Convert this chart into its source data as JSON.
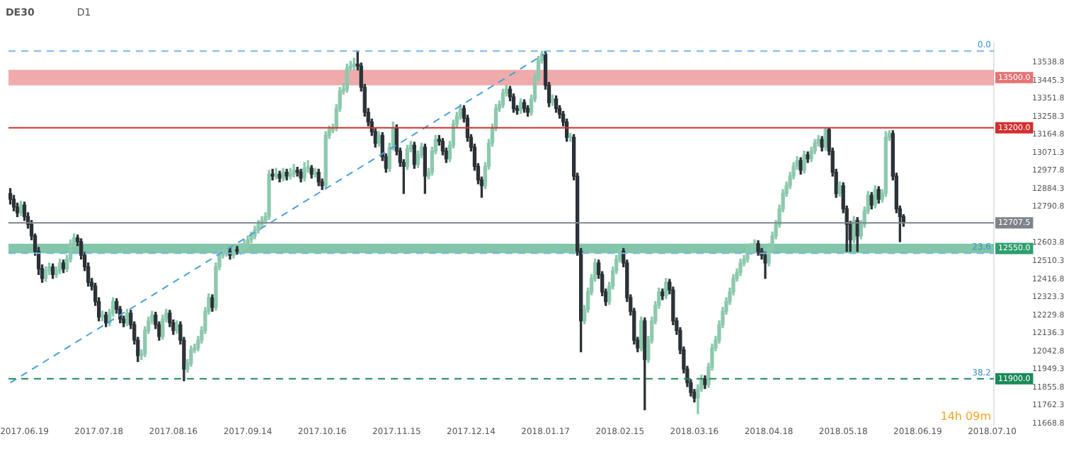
{
  "chart_data": {
    "type": "candlestick",
    "title": "DE30",
    "subtitle": "D1",
    "categories": [
      null,
      null,
      null,
      null,
      "2017.06.19",
      null,
      null,
      null,
      null,
      null,
      null,
      null,
      null,
      null,
      null,
      null,
      null,
      null,
      null,
      null,
      null,
      null,
      null,
      null,
      null,
      "2017.07.18",
      null,
      null,
      null,
      null,
      null,
      null,
      null,
      null,
      null,
      null,
      null,
      null,
      null,
      null,
      null,
      null,
      null,
      null,
      null,
      null,
      "2017.08.16",
      null,
      null,
      null,
      null,
      null,
      null,
      null,
      null,
      null,
      null,
      null,
      null,
      null,
      null,
      null,
      null,
      null,
      null,
      null,
      null,
      "2017.09.14",
      null,
      null,
      null,
      null,
      null,
      null,
      null,
      null,
      null,
      null,
      null,
      null,
      null,
      null,
      null,
      null,
      null,
      null,
      null,
      null,
      "2017.10.16",
      null,
      null,
      null,
      null,
      null,
      null,
      null,
      null,
      null,
      null,
      null,
      null,
      null,
      null,
      null,
      null,
      null,
      null,
      null,
      null,
      "2017.11.15",
      null,
      null,
      null,
      null,
      null,
      null,
      null,
      null,
      null,
      null,
      null,
      null,
      null,
      null,
      null,
      null,
      null,
      null,
      null,
      null,
      "2017.12.14",
      null,
      null,
      null,
      null,
      null,
      null,
      null,
      null,
      null,
      null,
      null,
      null,
      null,
      null,
      null,
      null,
      null,
      null,
      null,
      null,
      "2018.01.17",
      null,
      null,
      null,
      null,
      null,
      null,
      null,
      null,
      null,
      null,
      null,
      null,
      null,
      null,
      null,
      null,
      null,
      null,
      null,
      null,
      "2018.02.15",
      null,
      null,
      null,
      null,
      null,
      null,
      null,
      null,
      null,
      null,
      null,
      null,
      null,
      null,
      null,
      null,
      null,
      null,
      null,
      null,
      "2018.03.16",
      null,
      null,
      null,
      null,
      null,
      null,
      null,
      null,
      null,
      null,
      null,
      null,
      null,
      null,
      null,
      null,
      null,
      null,
      null,
      null,
      "2018.04.18",
      null,
      null,
      null,
      null,
      null,
      null,
      null,
      null,
      null,
      null,
      null,
      null,
      null,
      null,
      null,
      null,
      null,
      null,
      null,
      null,
      "2018.05.18",
      null,
      null,
      null,
      null,
      null,
      null,
      null,
      null,
      null,
      null,
      null,
      null,
      null,
      null,
      null,
      null,
      null,
      null,
      null,
      null,
      "2018.06.19",
      null,
      null,
      null,
      null,
      null,
      null,
      null,
      null,
      null,
      null,
      null,
      null,
      null,
      null,
      null,
      null,
      null,
      null,
      null,
      null,
      "2018.07.10"
    ],
    "ohlc": [
      [
        12860,
        12885,
        12805,
        12830
      ],
      [
        12830,
        12850,
        12770,
        12790
      ],
      [
        12790,
        12810,
        12740,
        12760
      ],
      [
        12760,
        12820,
        12745,
        12800
      ],
      [
        12800,
        12815,
        12720,
        12740
      ],
      [
        12740,
        12760,
        12680,
        12700
      ],
      [
        12700,
        12720,
        12620,
        12640
      ],
      [
        12640,
        12650,
        12540,
        12560
      ],
      [
        12560,
        12580,
        12440,
        12470
      ],
      [
        12470,
        12490,
        12400,
        12420
      ],
      [
        12420,
        12480,
        12405,
        12460
      ],
      [
        12460,
        12500,
        12440,
        12480
      ],
      [
        12480,
        12495,
        12420,
        12440
      ],
      [
        12440,
        12480,
        12425,
        12460
      ],
      [
        12460,
        12520,
        12445,
        12500
      ],
      [
        12500,
        12515,
        12450,
        12470
      ],
      [
        12470,
        12540,
        12455,
        12520
      ],
      [
        12520,
        12620,
        12505,
        12600
      ],
      [
        12600,
        12650,
        12580,
        12630
      ],
      [
        12630,
        12645,
        12590,
        12610
      ],
      [
        12610,
        12625,
        12520,
        12540
      ],
      [
        12540,
        12555,
        12460,
        12480
      ],
      [
        12480,
        12500,
        12380,
        12400
      ],
      [
        12400,
        12420,
        12360,
        12380
      ],
      [
        12380,
        12395,
        12280,
        12300
      ],
      [
        12300,
        12320,
        12200,
        12220
      ],
      [
        12220,
        12250,
        12200,
        12230
      ],
      [
        12230,
        12245,
        12170,
        12190
      ],
      [
        12190,
        12260,
        12175,
        12240
      ],
      [
        12240,
        12320,
        12225,
        12300
      ],
      [
        12300,
        12315,
        12240,
        12260
      ],
      [
        12260,
        12275,
        12190,
        12210
      ],
      [
        12210,
        12225,
        12170,
        12190
      ],
      [
        12190,
        12260,
        12175,
        12240
      ],
      [
        12240,
        12255,
        12160,
        12180
      ],
      [
        12180,
        12195,
        12080,
        12100
      ],
      [
        12100,
        12115,
        11990,
        12020
      ],
      [
        12020,
        12050,
        12000,
        12030
      ],
      [
        12030,
        12170,
        12015,
        12150
      ],
      [
        12150,
        12220,
        12135,
        12200
      ],
      [
        12200,
        12250,
        12185,
        12230
      ],
      [
        12230,
        12245,
        12160,
        12180
      ],
      [
        12180,
        12195,
        12100,
        12120
      ],
      [
        12120,
        12230,
        12105,
        12210
      ],
      [
        12210,
        12260,
        12195,
        12240
      ],
      [
        12240,
        12255,
        12170,
        12190
      ],
      [
        12190,
        12205,
        12130,
        12150
      ],
      [
        12150,
        12200,
        12135,
        12180
      ],
      [
        12180,
        12195,
        12080,
        12100
      ],
      [
        12100,
        12115,
        11890,
        11950
      ],
      [
        11950,
        12000,
        11935,
        11980
      ],
      [
        11980,
        12070,
        11965,
        12050
      ],
      [
        12050,
        12080,
        12035,
        12060
      ],
      [
        12060,
        12120,
        12045,
        12100
      ],
      [
        12100,
        12170,
        12085,
        12150
      ],
      [
        12150,
        12270,
        12135,
        12250
      ],
      [
        12250,
        12340,
        12235,
        12320
      ],
      [
        12320,
        12335,
        12250,
        12270
      ],
      [
        12270,
        12500,
        12255,
        12480
      ],
      [
        12480,
        12560,
        12465,
        12540
      ],
      [
        12540,
        12570,
        12525,
        12550
      ],
      [
        12550,
        12580,
        12535,
        12560
      ],
      [
        12560,
        12575,
        12520,
        12540
      ],
      [
        12540,
        12590,
        12525,
        12570
      ],
      [
        12570,
        12585,
        12545,
        12560
      ],
      [
        12560,
        12600,
        12545,
        12580
      ],
      [
        12580,
        12620,
        12565,
        12600
      ],
      [
        12600,
        12640,
        12585,
        12620
      ],
      [
        12620,
        12660,
        12605,
        12640
      ],
      [
        12640,
        12690,
        12625,
        12670
      ],
      [
        12670,
        12720,
        12655,
        12700
      ],
      [
        12700,
        12740,
        12685,
        12720
      ],
      [
        12720,
        12760,
        12705,
        12740
      ],
      [
        12740,
        12980,
        12725,
        12960
      ],
      [
        12960,
        12985,
        12930,
        12950
      ],
      [
        12950,
        12990,
        12935,
        12960
      ],
      [
        12960,
        12975,
        12920,
        12940
      ],
      [
        12940,
        12990,
        12925,
        12970
      ],
      [
        12970,
        12985,
        12930,
        12950
      ],
      [
        12950,
        12990,
        12935,
        12960
      ],
      [
        12960,
        13010,
        12945,
        12980
      ],
      [
        12980,
        12995,
        12950,
        12970
      ],
      [
        12970,
        12985,
        12920,
        12940
      ],
      [
        12940,
        13020,
        12925,
        12990
      ],
      [
        12990,
        13030,
        12970,
        12990
      ],
      [
        12990,
        13005,
        12940,
        12960
      ],
      [
        12960,
        12990,
        12945,
        12970
      ],
      [
        12970,
        12985,
        12900,
        12920
      ],
      [
        12920,
        12935,
        12880,
        12900
      ],
      [
        12900,
        13180,
        12885,
        13160
      ],
      [
        13160,
        13210,
        13145,
        13190
      ],
      [
        13190,
        13220,
        13175,
        13200
      ],
      [
        13200,
        13320,
        13185,
        13300
      ],
      [
        13300,
        13410,
        13285,
        13390
      ],
      [
        13390,
        13430,
        13375,
        13400
      ],
      [
        13400,
        13530,
        13385,
        13510
      ],
      [
        13510,
        13545,
        13495,
        13520
      ],
      [
        13520,
        13560,
        13500,
        13530
      ],
      [
        13530,
        13597,
        13500,
        13520
      ],
      [
        13520,
        13535,
        13390,
        13410
      ],
      [
        13410,
        13425,
        13260,
        13280
      ],
      [
        13280,
        13300,
        13210,
        13230
      ],
      [
        13230,
        13245,
        13160,
        13180
      ],
      [
        13180,
        13195,
        13100,
        13120
      ],
      [
        13120,
        13180,
        13105,
        13160
      ],
      [
        13160,
        13175,
        13030,
        13050
      ],
      [
        13050,
        13065,
        12970,
        12990
      ],
      [
        12990,
        13120,
        12975,
        13100
      ],
      [
        13100,
        13230,
        13085,
        13200
      ],
      [
        13200,
        13215,
        13060,
        13080
      ],
      [
        13080,
        13095,
        13000,
        13020
      ],
      [
        13020,
        13035,
        12860,
        13000
      ],
      [
        13000,
        13110,
        12985,
        13090
      ],
      [
        13090,
        13130,
        13075,
        13110
      ],
      [
        13110,
        13125,
        12990,
        13010
      ],
      [
        13010,
        13080,
        12995,
        13060
      ],
      [
        13060,
        13120,
        13045,
        13100
      ],
      [
        13100,
        13115,
        12860,
        12950
      ],
      [
        12950,
        12990,
        12935,
        12970
      ],
      [
        12970,
        13100,
        12955,
        13080
      ],
      [
        13080,
        13160,
        13065,
        13140
      ],
      [
        13140,
        13160,
        13110,
        13130
      ],
      [
        13130,
        13145,
        13060,
        13080
      ],
      [
        13080,
        13095,
        13020,
        13040
      ],
      [
        13040,
        13130,
        13025,
        13110
      ],
      [
        13110,
        13240,
        13095,
        13220
      ],
      [
        13220,
        13280,
        13205,
        13260
      ],
      [
        13260,
        13320,
        13245,
        13300
      ],
      [
        13300,
        13315,
        13230,
        13250
      ],
      [
        13250,
        13265,
        13130,
        13150
      ],
      [
        13150,
        13165,
        13080,
        13100
      ],
      [
        13100,
        13115,
        12980,
        13000
      ],
      [
        13000,
        13015,
        12910,
        12930
      ],
      [
        12930,
        12945,
        12840,
        12900
      ],
      [
        12900,
        13020,
        12885,
        13000
      ],
      [
        13000,
        13140,
        12985,
        13120
      ],
      [
        13120,
        13220,
        13105,
        13200
      ],
      [
        13200,
        13320,
        13185,
        13300
      ],
      [
        13300,
        13340,
        13285,
        13320
      ],
      [
        13320,
        13400,
        13305,
        13380
      ],
      [
        13380,
        13420,
        13365,
        13400
      ],
      [
        13400,
        13415,
        13340,
        13360
      ],
      [
        13360,
        13375,
        13280,
        13300
      ],
      [
        13300,
        13315,
        13270,
        13290
      ],
      [
        13290,
        13350,
        13275,
        13330
      ],
      [
        13330,
        13345,
        13280,
        13300
      ],
      [
        13300,
        13315,
        13260,
        13280
      ],
      [
        13280,
        13370,
        13265,
        13350
      ],
      [
        13350,
        13480,
        13335,
        13460
      ],
      [
        13460,
        13570,
        13445,
        13550
      ],
      [
        13550,
        13597,
        13535,
        13580
      ],
      [
        13580,
        13595,
        13400,
        13420
      ],
      [
        13420,
        13435,
        13310,
        13330
      ],
      [
        13330,
        13370,
        13315,
        13350
      ],
      [
        13350,
        13365,
        13280,
        13300
      ],
      [
        13300,
        13315,
        13250,
        13270
      ],
      [
        13270,
        13285,
        13210,
        13230
      ],
      [
        13230,
        13245,
        13130,
        13150
      ],
      [
        13150,
        13170,
        13130,
        13150
      ],
      [
        13150,
        13165,
        12930,
        12950
      ],
      [
        12950,
        12965,
        12540,
        12560
      ],
      [
        12560,
        12575,
        12040,
        12200
      ],
      [
        12200,
        12280,
        12185,
        12260
      ],
      [
        12260,
        12370,
        12245,
        12350
      ],
      [
        12350,
        12440,
        12335,
        12420
      ],
      [
        12420,
        12520,
        12405,
        12500
      ],
      [
        12500,
        12515,
        12420,
        12440
      ],
      [
        12440,
        12455,
        12330,
        12350
      ],
      [
        12350,
        12365,
        12280,
        12300
      ],
      [
        12300,
        12400,
        12285,
        12380
      ],
      [
        12380,
        12480,
        12365,
        12460
      ],
      [
        12460,
        12540,
        12445,
        12520
      ],
      [
        12520,
        12580,
        12505,
        12560
      ],
      [
        12560,
        12575,
        12480,
        12500
      ],
      [
        12500,
        12515,
        12300,
        12320
      ],
      [
        12320,
        12335,
        12230,
        12250
      ],
      [
        12250,
        12265,
        12080,
        12100
      ],
      [
        12100,
        12115,
        12040,
        12060
      ],
      [
        12060,
        12220,
        12045,
        12200
      ],
      [
        12200,
        12215,
        11740,
        12000
      ],
      [
        12000,
        12120,
        11985,
        12100
      ],
      [
        12100,
        12220,
        12085,
        12200
      ],
      [
        12200,
        12300,
        12185,
        12280
      ],
      [
        12280,
        12370,
        12265,
        12350
      ],
      [
        12350,
        12365,
        12310,
        12330
      ],
      [
        12330,
        12420,
        12315,
        12400
      ],
      [
        12400,
        12415,
        12340,
        12360
      ],
      [
        12360,
        12375,
        12180,
        12200
      ],
      [
        12200,
        12215,
        12130,
        12150
      ],
      [
        12150,
        12165,
        12030,
        12050
      ],
      [
        12050,
        12065,
        11930,
        11950
      ],
      [
        11950,
        11965,
        11860,
        11880
      ],
      [
        11880,
        11895,
        11810,
        11830
      ],
      [
        11830,
        11845,
        11780,
        11800
      ],
      [
        11800,
        11870,
        11720,
        11850
      ],
      [
        11850,
        11920,
        11835,
        11900
      ],
      [
        11900,
        11915,
        11850,
        11870
      ],
      [
        11870,
        11980,
        11855,
        11960
      ],
      [
        11960,
        12080,
        11945,
        12060
      ],
      [
        12060,
        12120,
        12045,
        12100
      ],
      [
        12100,
        12200,
        12085,
        12180
      ],
      [
        12180,
        12270,
        12165,
        12250
      ],
      [
        12250,
        12320,
        12235,
        12300
      ],
      [
        12300,
        12370,
        12285,
        12350
      ],
      [
        12350,
        12440,
        12335,
        12420
      ],
      [
        12420,
        12470,
        12405,
        12450
      ],
      [
        12450,
        12520,
        12435,
        12500
      ],
      [
        12500,
        12540,
        12485,
        12520
      ],
      [
        12520,
        12580,
        12505,
        12560
      ],
      [
        12560,
        12600,
        12545,
        12580
      ],
      [
        12580,
        12620,
        12565,
        12600
      ],
      [
        12600,
        12615,
        12540,
        12560
      ],
      [
        12560,
        12575,
        12520,
        12540
      ],
      [
        12540,
        12555,
        12420,
        12500
      ],
      [
        12500,
        12600,
        12485,
        12580
      ],
      [
        12580,
        12660,
        12565,
        12640
      ],
      [
        12640,
        12720,
        12625,
        12700
      ],
      [
        12700,
        12800,
        12685,
        12780
      ],
      [
        12780,
        12880,
        12765,
        12860
      ],
      [
        12860,
        12920,
        12845,
        12900
      ],
      [
        12900,
        12970,
        12885,
        12950
      ],
      [
        12950,
        13020,
        12935,
        13000
      ],
      [
        13000,
        13050,
        12985,
        13030
      ],
      [
        13030,
        13045,
        12960,
        12980
      ],
      [
        12980,
        13080,
        12965,
        13060
      ],
      [
        13060,
        13075,
        13020,
        13040
      ],
      [
        13040,
        13100,
        13025,
        13080
      ],
      [
        13080,
        13140,
        13065,
        13120
      ],
      [
        13120,
        13160,
        13105,
        13140
      ],
      [
        13140,
        13155,
        13080,
        13100
      ],
      [
        13100,
        13200,
        13085,
        13190
      ],
      [
        13190,
        13200,
        13060,
        13080
      ],
      [
        13080,
        13095,
        12950,
        12970
      ],
      [
        12970,
        12985,
        12840,
        12860
      ],
      [
        12860,
        12920,
        12845,
        12900
      ],
      [
        12900,
        12915,
        12760,
        12780
      ],
      [
        12780,
        12795,
        12560,
        12700
      ],
      [
        12700,
        12715,
        12560,
        12620
      ],
      [
        12620,
        12740,
        12605,
        12720
      ],
      [
        12720,
        12735,
        12560,
        12640
      ],
      [
        12640,
        12720,
        12625,
        12700
      ],
      [
        12700,
        12790,
        12685,
        12770
      ],
      [
        12770,
        12870,
        12755,
        12850
      ],
      [
        12850,
        12865,
        12780,
        12800
      ],
      [
        12800,
        12900,
        12785,
        12880
      ],
      [
        12880,
        12895,
        12810,
        12830
      ],
      [
        12830,
        12880,
        12815,
        12860
      ],
      [
        12860,
        13180,
        12845,
        13150
      ],
      [
        13150,
        13185,
        13135,
        13170
      ],
      [
        13170,
        13185,
        12930,
        12950
      ],
      [
        12950,
        12965,
        12760,
        12780
      ],
      [
        12780,
        12795,
        12610,
        12740
      ],
      [
        12740,
        12750,
        12690,
        12707.5
      ],
      null,
      null,
      null,
      null,
      null,
      null,
      null,
      null,
      null,
      null,
      null,
      null,
      null,
      null,
      null,
      null,
      null,
      null,
      null,
      null,
      null,
      null,
      null,
      null,
      null
    ],
    "series": [
      {
        "type": "line",
        "color": "#4a9fe0",
        "line_style": "dashed",
        "values": [
          11880,
          null,
          null,
          null,
          null,
          null,
          null,
          null,
          null,
          null,
          null,
          null,
          null,
          null,
          null,
          null,
          null,
          null,
          null,
          null,
          null,
          null,
          null,
          null,
          null,
          null,
          null,
          null,
          null,
          null,
          null,
          null,
          null,
          null,
          null,
          null,
          null,
          null,
          null,
          null,
          null,
          null,
          null,
          null,
          null,
          null,
          null,
          null,
          null,
          null,
          null,
          null,
          null,
          null,
          null,
          null,
          null,
          null,
          null,
          null,
          null,
          null,
          null,
          null,
          null,
          null,
          null,
          null,
          null,
          null,
          null,
          null,
          null,
          null,
          null,
          null,
          null,
          null,
          null,
          null,
          null,
          null,
          null,
          null,
          null,
          null,
          null,
          null,
          null,
          null,
          null,
          null,
          null,
          null,
          null,
          null,
          null,
          null,
          null,
          null,
          null,
          null,
          null,
          null,
          null,
          null,
          null,
          null,
          null,
          null,
          null,
          null,
          null,
          null,
          null,
          null,
          null,
          null,
          null,
          null,
          null,
          null,
          null,
          null,
          null,
          null,
          null,
          null,
          null,
          null,
          null,
          null,
          null,
          null,
          null,
          null,
          null,
          null,
          null,
          null,
          null,
          null,
          null,
          null,
          null,
          null,
          null,
          null,
          null,
          null,
          null,
          13585,
          null,
          null,
          null,
          null,
          null,
          null,
          null,
          null,
          null,
          null,
          null,
          null,
          null,
          null,
          null,
          null,
          null,
          null,
          null,
          null,
          null,
          null,
          null,
          null,
          null,
          null,
          null,
          null,
          null,
          null,
          null,
          null,
          null,
          null,
          null,
          null,
          null,
          null,
          null,
          null,
          null,
          null,
          null,
          null,
          null,
          null,
          null,
          null,
          null,
          null,
          null,
          null,
          null,
          null,
          null,
          null,
          null,
          null,
          null,
          null,
          null,
          null,
          null,
          null,
          null,
          null,
          null,
          null,
          null,
          null,
          null,
          null,
          null,
          null,
          null,
          null,
          null,
          null,
          null,
          null,
          null,
          null,
          null,
          null,
          null,
          null,
          null,
          null,
          null,
          null,
          null,
          null,
          null,
          null,
          null,
          null,
          null,
          null,
          null,
          null,
          null,
          null,
          null,
          null,
          null,
          null,
          null,
          null,
          null,
          null,
          null,
          null,
          null,
          null,
          null,
          null,
          null,
          null,
          null,
          null,
          null,
          null,
          null,
          null,
          null,
          null
        ]
      }
    ],
    "ylim": [
      11660,
      13640
    ],
    "yticks": [
      13538.8,
      13445.3,
      13351.8,
      13258.3,
      13164.8,
      13071.3,
      12977.8,
      12884.3,
      12790.8,
      12603.8,
      12510.3,
      12416.8,
      12323.3,
      12229.8,
      12136.3,
      12042.8,
      11949.3,
      11855.8,
      11762.3,
      11668.8
    ],
    "bands": [
      {
        "axis": "y",
        "from": 13420,
        "to": 13500,
        "label": "13500.0",
        "color": "#e57373"
      },
      {
        "axis": "y",
        "from": 12550,
        "to": 12600,
        "label": "12550.0",
        "color": "#2e9e6e"
      }
    ],
    "ref_lines": [
      {
        "axis": "y",
        "value": 13597,
        "color": "#7ab8e8",
        "line_style": "dashed"
      },
      {
        "axis": "y",
        "value": 12550,
        "color": "#7ab8e8",
        "line_style": "dashed"
      },
      {
        "axis": "y",
        "value": 13200,
        "label": "13200.0",
        "color": "#d32f2f",
        "line_style": "solid"
      },
      {
        "axis": "y",
        "value": 11900,
        "label": "11900.0",
        "color": "#1b8a5a",
        "line_style": "dashed"
      },
      {
        "axis": "y",
        "value": 12707.5,
        "label": "12707.5",
        "color": "#7d848b",
        "line_style": "solid"
      }
    ],
    "annotations": [
      "14h 09m",
      {
        "text": "0.0",
        "y": 13597
      },
      {
        "text": "23.6",
        "y": 12550
      },
      {
        "text": "38.2",
        "y": 11900
      }
    ]
  }
}
